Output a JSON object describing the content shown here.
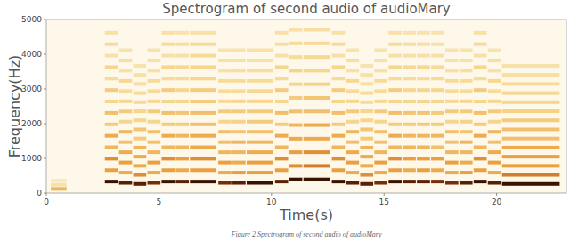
{
  "chart_data": {
    "type": "spectrogram",
    "title": "Spectrogram of second audio of audioMary",
    "x_label": "Time(s)",
    "y_label": "Frequency(Hz)",
    "caption": "Figure 2 Spectrogram of second audio of audioMary",
    "xlim": [
      0,
      23.1
    ],
    "xticks": [
      0,
      5,
      10,
      15,
      20
    ],
    "ylim": [
      0,
      5000
    ],
    "yticks": [
      0,
      1000,
      2000,
      3000,
      4000,
      5000
    ],
    "zlim": [
      0,
      1
    ],
    "notes": [
      {
        "start": 0.2,
        "end": 0.9,
        "f0": 120,
        "levels": [
          0.45,
          0.2,
          0.12
        ]
      },
      {
        "start": 2.6,
        "end": 3.18,
        "f0": 330,
        "levels": [
          1,
          0.55,
          0.6,
          0.45,
          0.5,
          0.35,
          0.4,
          0.3,
          0.35,
          0.25,
          0.3,
          0.2,
          0.25,
          0.2
        ]
      },
      {
        "start": 3.23,
        "end": 3.81,
        "f0": 294,
        "levels": [
          0.95,
          0.5,
          0.55,
          0.5,
          0.4,
          0.45,
          0.3,
          0.35,
          0.3,
          0.25,
          0.28,
          0.2,
          0.22,
          0.18
        ]
      },
      {
        "start": 3.86,
        "end": 4.44,
        "f0": 262,
        "levels": [
          0.95,
          0.6,
          0.5,
          0.5,
          0.45,
          0.35,
          0.38,
          0.3,
          0.3,
          0.25,
          0.25,
          0.22,
          0.2,
          0.18
        ]
      },
      {
        "start": 4.49,
        "end": 5.07,
        "f0": 294,
        "levels": [
          0.9,
          0.5,
          0.55,
          0.45,
          0.4,
          0.4,
          0.3,
          0.35,
          0.28,
          0.25,
          0.25,
          0.2,
          0.2,
          0.18
        ]
      },
      {
        "start": 5.12,
        "end": 5.7,
        "f0": 330,
        "levels": [
          1,
          0.55,
          0.6,
          0.45,
          0.5,
          0.35,
          0.4,
          0.3,
          0.35,
          0.25,
          0.3,
          0.2,
          0.25,
          0.2
        ]
      },
      {
        "start": 5.75,
        "end": 6.33,
        "f0": 330,
        "levels": [
          0.95,
          0.5,
          0.55,
          0.45,
          0.45,
          0.35,
          0.38,
          0.3,
          0.3,
          0.25,
          0.28,
          0.2,
          0.22,
          0.18
        ]
      },
      {
        "start": 6.38,
        "end": 7.55,
        "f0": 330,
        "levels": [
          1,
          0.55,
          0.6,
          0.5,
          0.5,
          0.4,
          0.4,
          0.35,
          0.35,
          0.3,
          0.3,
          0.25,
          0.25,
          0.2
        ]
      },
      {
        "start": 7.64,
        "end": 8.22,
        "f0": 294,
        "levels": [
          0.9,
          0.5,
          0.55,
          0.45,
          0.4,
          0.4,
          0.3,
          0.35,
          0.28,
          0.25,
          0.25,
          0.2,
          0.2,
          0.18
        ]
      },
      {
        "start": 8.27,
        "end": 8.85,
        "f0": 294,
        "levels": [
          0.95,
          0.55,
          0.5,
          0.45,
          0.45,
          0.38,
          0.32,
          0.35,
          0.3,
          0.25,
          0.25,
          0.22,
          0.2,
          0.18
        ]
      },
      {
        "start": 8.9,
        "end": 10.05,
        "f0": 294,
        "levels": [
          1,
          0.55,
          0.55,
          0.5,
          0.45,
          0.4,
          0.35,
          0.35,
          0.3,
          0.28,
          0.25,
          0.22,
          0.2,
          0.2
        ]
      },
      {
        "start": 10.16,
        "end": 10.74,
        "f0": 330,
        "levels": [
          0.95,
          0.55,
          0.6,
          0.45,
          0.5,
          0.35,
          0.4,
          0.3,
          0.35,
          0.25,
          0.3,
          0.2,
          0.22,
          0.2
        ]
      },
      {
        "start": 10.79,
        "end": 11.37,
        "f0": 392,
        "levels": [
          1,
          0.6,
          0.55,
          0.5,
          0.45,
          0.4,
          0.35,
          0.3,
          0.3,
          0.25,
          0.25,
          0.2
        ]
      },
      {
        "start": 11.42,
        "end": 12.6,
        "f0": 392,
        "levels": [
          1,
          0.65,
          0.6,
          0.5,
          0.5,
          0.4,
          0.38,
          0.32,
          0.3,
          0.28,
          0.25,
          0.22
        ]
      },
      {
        "start": 12.68,
        "end": 13.26,
        "f0": 330,
        "levels": [
          1,
          0.55,
          0.6,
          0.45,
          0.5,
          0.35,
          0.4,
          0.3,
          0.35,
          0.25,
          0.3,
          0.2,
          0.25,
          0.2
        ]
      },
      {
        "start": 13.31,
        "end": 13.89,
        "f0": 294,
        "levels": [
          0.95,
          0.5,
          0.55,
          0.5,
          0.4,
          0.45,
          0.3,
          0.35,
          0.3,
          0.25,
          0.28,
          0.2,
          0.22,
          0.18
        ]
      },
      {
        "start": 13.94,
        "end": 14.52,
        "f0": 262,
        "levels": [
          0.95,
          0.6,
          0.5,
          0.5,
          0.45,
          0.35,
          0.38,
          0.3,
          0.3,
          0.25,
          0.25,
          0.22,
          0.2,
          0.18
        ]
      },
      {
        "start": 14.57,
        "end": 15.15,
        "f0": 294,
        "levels": [
          0.9,
          0.5,
          0.55,
          0.45,
          0.4,
          0.4,
          0.3,
          0.35,
          0.28,
          0.25,
          0.25,
          0.2,
          0.2,
          0.18
        ]
      },
      {
        "start": 15.2,
        "end": 15.78,
        "f0": 330,
        "levels": [
          1,
          0.55,
          0.6,
          0.45,
          0.5,
          0.35,
          0.4,
          0.3,
          0.35,
          0.25,
          0.3,
          0.2,
          0.25,
          0.2
        ]
      },
      {
        "start": 15.83,
        "end": 16.41,
        "f0": 330,
        "levels": [
          0.95,
          0.5,
          0.55,
          0.45,
          0.45,
          0.35,
          0.38,
          0.3,
          0.3,
          0.25,
          0.28,
          0.2,
          0.22,
          0.18
        ]
      },
      {
        "start": 16.46,
        "end": 17.04,
        "f0": 330,
        "levels": [
          0.95,
          0.55,
          0.55,
          0.45,
          0.45,
          0.35,
          0.38,
          0.3,
          0.3,
          0.25,
          0.28,
          0.2,
          0.22,
          0.18
        ]
      },
      {
        "start": 17.09,
        "end": 17.67,
        "f0": 330,
        "levels": [
          0.9,
          0.5,
          0.55,
          0.4,
          0.45,
          0.35,
          0.35,
          0.3,
          0.3,
          0.25,
          0.25,
          0.2,
          0.2,
          0.18
        ]
      },
      {
        "start": 17.72,
        "end": 18.3,
        "f0": 294,
        "levels": [
          0.9,
          0.5,
          0.55,
          0.45,
          0.4,
          0.4,
          0.3,
          0.35,
          0.28,
          0.25,
          0.25,
          0.2,
          0.2,
          0.18
        ]
      },
      {
        "start": 18.35,
        "end": 18.93,
        "f0": 294,
        "levels": [
          0.95,
          0.55,
          0.5,
          0.45,
          0.45,
          0.38,
          0.32,
          0.35,
          0.3,
          0.25,
          0.25,
          0.22,
          0.2,
          0.18
        ]
      },
      {
        "start": 18.98,
        "end": 19.56,
        "f0": 330,
        "levels": [
          1,
          0.55,
          0.6,
          0.45,
          0.5,
          0.35,
          0.4,
          0.3,
          0.35,
          0.25,
          0.3,
          0.2,
          0.25,
          0.2
        ]
      },
      {
        "start": 19.61,
        "end": 20.19,
        "f0": 294,
        "levels": [
          0.95,
          0.5,
          0.55,
          0.5,
          0.4,
          0.45,
          0.3,
          0.35,
          0.3,
          0.25,
          0.28,
          0.2,
          0.22,
          0.18
        ]
      },
      {
        "start": 20.24,
        "end": 22.8,
        "f0": 262,
        "levels": [
          1,
          0.65,
          0.55,
          0.55,
          0.5,
          0.4,
          0.4,
          0.35,
          0.32,
          0.3,
          0.28,
          0.25,
          0.22,
          0.2
        ]
      }
    ]
  }
}
